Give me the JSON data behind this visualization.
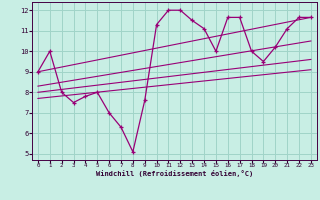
{
  "xlabel": "Windchill (Refroidissement éolien,°C)",
  "bg_color": "#c8eee4",
  "grid_color": "#a0d4c8",
  "line_color": "#990077",
  "xlim": [
    -0.5,
    23.5
  ],
  "ylim": [
    4.7,
    12.4
  ],
  "xticks": [
    0,
    1,
    2,
    3,
    4,
    5,
    6,
    7,
    8,
    9,
    10,
    11,
    12,
    13,
    14,
    15,
    16,
    17,
    18,
    19,
    20,
    21,
    22,
    23
  ],
  "yticks": [
    5,
    6,
    7,
    8,
    9,
    10,
    11,
    12
  ],
  "main_x": [
    0,
    1,
    2,
    3,
    4,
    5,
    6,
    7,
    8,
    9,
    10,
    11,
    12,
    13,
    14,
    15,
    16,
    17,
    18,
    19,
    20,
    21,
    22,
    23
  ],
  "main_y": [
    9.0,
    10.0,
    8.0,
    7.5,
    7.8,
    8.0,
    7.0,
    6.3,
    5.1,
    7.6,
    11.3,
    12.0,
    12.0,
    11.5,
    11.1,
    10.0,
    11.65,
    11.65,
    10.0,
    9.5,
    10.2,
    11.1,
    11.65,
    11.65
  ],
  "line1_x": [
    0,
    23
  ],
  "line1_y": [
    9.0,
    11.65
  ],
  "line2_x": [
    0,
    23
  ],
  "line2_y": [
    8.3,
    10.5
  ],
  "line3_x": [
    0,
    23
  ],
  "line3_y": [
    8.0,
    9.6
  ],
  "line4_x": [
    0,
    23
  ],
  "line4_y": [
    7.7,
    9.1
  ]
}
